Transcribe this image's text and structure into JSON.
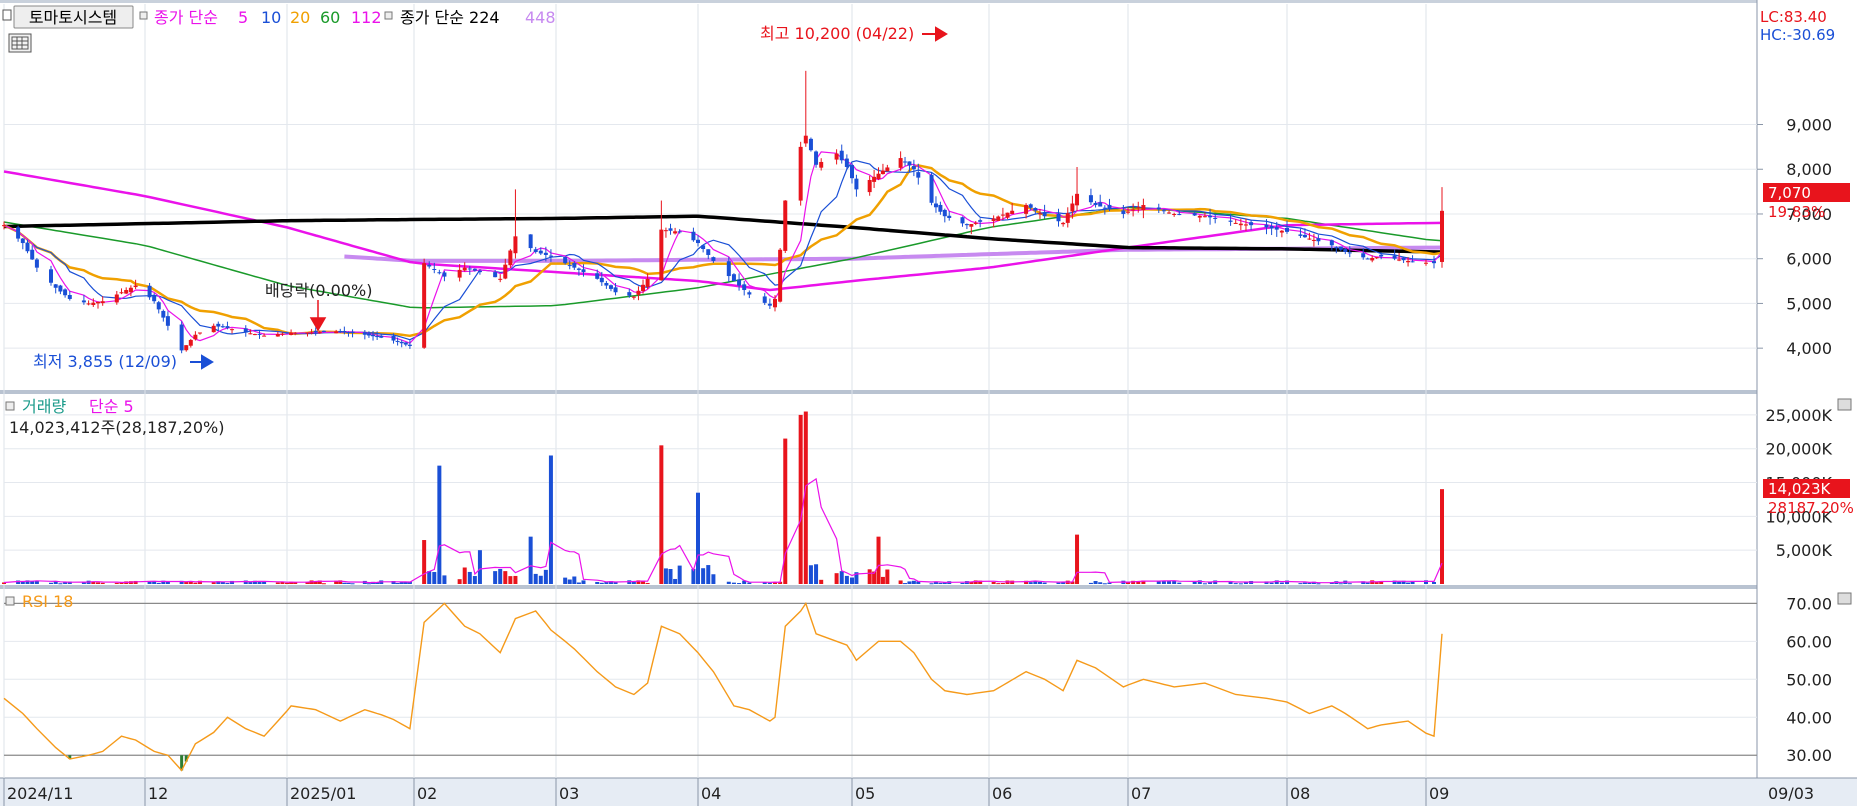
{
  "header": {
    "stock_button": "토마토시스템",
    "ma_label": "종가 단순",
    "ma_periods": [
      "5",
      "10",
      "20",
      "60",
      "112"
    ],
    "ma_long_label": "종가 단순 224",
    "ma_longest": "448",
    "lc": "LC:83.40",
    "hc": "HC:-30.69"
  },
  "colors": {
    "up": "#e8141c",
    "down": "#1a4fd6",
    "ma5": "#ea12ea",
    "ma10": "#1a4fd6",
    "ma20": "#f0a000",
    "ma60": "#1a9a2a",
    "ma112": "#ea12ea",
    "ma224": "#000000",
    "ma448": "#c78af0",
    "rsi": "#f59a1a"
  },
  "annotations": {
    "high": "최고 10,200 (04/22)",
    "low": "최저 3,855 (12/09)",
    "dividend": "배당락(0.00%)"
  },
  "price_panel": {
    "ticks": [
      "9,000",
      "8,000",
      "7,000",
      "6,000",
      "5,000",
      "4,000"
    ],
    "last_price": "7,070",
    "change_pct": "19.83%"
  },
  "volume_panel": {
    "title": "거래량",
    "ma_label": "단순 5",
    "summary": "14,023,412주(28,187,20%)",
    "ticks": [
      "25,000K",
      "20,000K",
      "15,000K",
      "10,000K",
      "5,000K"
    ],
    "last_volume": "14,023K",
    "last_ma": "28187.20%"
  },
  "rsi_panel": {
    "title": "RSI 18",
    "ticks": [
      "70.00",
      "60.00",
      "50.00",
      "40.00",
      "30.00"
    ]
  },
  "x_axis": {
    "labels": [
      "2024/11",
      "12",
      "2025/01",
      "02",
      "03",
      "04",
      "05",
      "06",
      "07",
      "08",
      "09"
    ],
    "cursor_date": "09/03"
  },
  "chart_data": [
    {
      "type": "candlestick",
      "title": "토마토시스템",
      "y_axis_ticks": [
        4000,
        5000,
        6000,
        7000,
        8000,
        9000
      ],
      "ylim": [
        3400,
        10800
      ],
      "x_range": [
        "2024-11-01",
        "2025-09-03"
      ],
      "annotations": [
        {
          "label": "최고 10,200 (04/22)",
          "date": "2025-04-22",
          "value": 10200
        },
        {
          "label": "최저 3,855 (12/09)",
          "date": "2024-12-09",
          "value": 3855
        },
        {
          "label": "배당락(0.00%)",
          "date": "2024-12-27",
          "value": 4700
        }
      ],
      "last_close": 7070,
      "change_percent": 19.83,
      "price_series": [
        [
          "2024-11-01",
          6750
        ],
        [
          "2024-11-05",
          6350
        ],
        [
          "2024-11-08",
          5800
        ],
        [
          "2024-11-12",
          5350
        ],
        [
          "2024-11-15",
          5100
        ],
        [
          "2024-11-19",
          5000
        ],
        [
          "2024-11-22",
          5050
        ],
        [
          "2024-11-26",
          5250
        ],
        [
          "2024-11-29",
          5400
        ],
        [
          "2024-12-03",
          5050
        ],
        [
          "2024-12-06",
          4500
        ],
        [
          "2024-12-09",
          3950
        ],
        [
          "2024-12-12",
          4300
        ],
        [
          "2024-12-16",
          4500
        ],
        [
          "2024-12-19",
          4450
        ],
        [
          "2024-12-23",
          4350
        ],
        [
          "2024-12-27",
          4280
        ],
        [
          "2025-01-02",
          4350
        ],
        [
          "2025-01-08",
          4350
        ],
        [
          "2025-01-14",
          4380
        ],
        [
          "2025-01-20",
          4300
        ],
        [
          "2025-01-26",
          4200
        ],
        [
          "2025-01-31",
          4050
        ],
        [
          "2025-02-03",
          5900
        ],
        [
          "2025-02-07",
          5600
        ],
        [
          "2025-02-11",
          5800
        ],
        [
          "2025-02-14",
          5700
        ],
        [
          "2025-02-18",
          5550
        ],
        [
          "2025-02-21",
          6500
        ],
        [
          "2025-02-25",
          6150
        ],
        [
          "2025-02-28",
          6050
        ],
        [
          "2025-03-05",
          5800
        ],
        [
          "2025-03-10",
          5550
        ],
        [
          "2025-03-14",
          5250
        ],
        [
          "2025-03-18",
          5150
        ],
        [
          "2025-03-21",
          5550
        ],
        [
          "2025-03-24",
          6650
        ],
        [
          "2025-03-28",
          6600
        ],
        [
          "2025-04-01",
          6350
        ],
        [
          "2025-04-04",
          5950
        ],
        [
          "2025-04-08",
          5500
        ],
        [
          "2025-04-11",
          5200
        ],
        [
          "2025-04-15",
          4950
        ],
        [
          "2025-04-16",
          5100
        ],
        [
          "2025-04-18",
          7300
        ],
        [
          "2025-04-21",
          8500
        ],
        [
          "2025-04-22",
          8750
        ],
        [
          "2025-04-24",
          8100
        ],
        [
          "2025-04-28",
          8350
        ],
        [
          "2025-04-30",
          8050
        ],
        [
          "2025-05-02",
          7550
        ],
        [
          "2025-05-07",
          7900
        ],
        [
          "2025-05-12",
          8250
        ],
        [
          "2025-05-15",
          8000
        ],
        [
          "2025-05-19",
          7250
        ],
        [
          "2025-05-22",
          6950
        ],
        [
          "2025-05-27",
          6750
        ],
        [
          "2025-06-02",
          6900
        ],
        [
          "2025-06-09",
          7200
        ],
        [
          "2025-06-13",
          6950
        ],
        [
          "2025-06-17",
          6800
        ],
        [
          "2025-06-20",
          7450
        ],
        [
          "2025-06-24",
          7200
        ],
        [
          "2025-06-30",
          7000
        ],
        [
          "2025-07-04",
          7200
        ],
        [
          "2025-07-10",
          7000
        ],
        [
          "2025-07-16",
          6950
        ],
        [
          "2025-07-22",
          6800
        ],
        [
          "2025-07-28",
          6700
        ],
        [
          "2025-08-01",
          6600
        ],
        [
          "2025-08-06",
          6450
        ],
        [
          "2025-08-11",
          6300
        ],
        [
          "2025-08-14",
          6150
        ],
        [
          "2025-08-19",
          6000
        ],
        [
          "2025-08-22",
          6050
        ],
        [
          "2025-08-28",
          5950
        ],
        [
          "2025-09-02",
          5900
        ],
        [
          "2025-09-03",
          7070
        ]
      ],
      "moving_average_series": [
        {
          "name": "5",
          "key": "ma5"
        },
        {
          "name": "10",
          "key": "ma10"
        },
        {
          "name": "20",
          "key": "ma20"
        },
        {
          "name": "60",
          "key": "ma60"
        },
        {
          "name": "112",
          "key": "ma112"
        },
        {
          "name": "224",
          "key": "ma224"
        },
        {
          "name": "448",
          "key": "ma448"
        }
      ]
    },
    {
      "type": "bar",
      "title": "거래량",
      "y_axis_ticks_k": [
        5000,
        10000,
        15000,
        20000,
        25000
      ],
      "ylim_k": [
        0,
        27500
      ],
      "last_volume_shares": 14023412,
      "spikes_k": [
        [
          "2025-02-03",
          6500
        ],
        [
          "2025-02-06",
          17500
        ],
        [
          "2025-02-14",
          5000
        ],
        [
          "2025-02-24",
          7000
        ],
        [
          "2025-02-28",
          19000
        ],
        [
          "2025-03-24",
          20500
        ],
        [
          "2025-04-01",
          13500
        ],
        [
          "2025-04-18",
          21500
        ],
        [
          "2025-04-21",
          25000
        ],
        [
          "2025-04-22",
          25500
        ],
        [
          "2025-05-07",
          7000
        ],
        [
          "2025-06-20",
          7300
        ],
        [
          "2025-09-03",
          14023
        ]
      ]
    },
    {
      "type": "line",
      "title": "RSI 18",
      "y_axis_ticks": [
        30,
        40,
        50,
        60,
        70
      ],
      "ylim": [
        24,
        73
      ],
      "series": [
        [
          "2024-11-01",
          45
        ],
        [
          "2024-11-05",
          41
        ],
        [
          "2024-11-08",
          37
        ],
        [
          "2024-11-12",
          32
        ],
        [
          "2024-11-15",
          29
        ],
        [
          "2024-11-19",
          30
        ],
        [
          "2024-11-22",
          31
        ],
        [
          "2024-11-26",
          35
        ],
        [
          "2024-11-29",
          34
        ],
        [
          "2024-12-03",
          31
        ],
        [
          "2024-12-06",
          30
        ],
        [
          "2024-12-09",
          26
        ],
        [
          "2024-12-12",
          33
        ],
        [
          "2024-12-16",
          36
        ],
        [
          "2024-12-19",
          40
        ],
        [
          "2024-12-23",
          37
        ],
        [
          "2024-12-27",
          35
        ],
        [
          "2025-01-02",
          43
        ],
        [
          "2025-01-08",
          42
        ],
        [
          "2025-01-14",
          39
        ],
        [
          "2025-01-20",
          42
        ],
        [
          "2025-01-26",
          40
        ],
        [
          "2025-01-31",
          37
        ],
        [
          "2025-02-03",
          65
        ],
        [
          "2025-02-07",
          70
        ],
        [
          "2025-02-11",
          64
        ],
        [
          "2025-02-14",
          62
        ],
        [
          "2025-02-18",
          57
        ],
        [
          "2025-02-21",
          66
        ],
        [
          "2025-02-25",
          68
        ],
        [
          "2025-02-28",
          63
        ],
        [
          "2025-03-05",
          58
        ],
        [
          "2025-03-10",
          52
        ],
        [
          "2025-03-14",
          48
        ],
        [
          "2025-03-18",
          46
        ],
        [
          "2025-03-21",
          49
        ],
        [
          "2025-03-24",
          64
        ],
        [
          "2025-03-28",
          62
        ],
        [
          "2025-04-01",
          57
        ],
        [
          "2025-04-04",
          52
        ],
        [
          "2025-04-08",
          43
        ],
        [
          "2025-04-11",
          42
        ],
        [
          "2025-04-15",
          39
        ],
        [
          "2025-04-16",
          40
        ],
        [
          "2025-04-18",
          64
        ],
        [
          "2025-04-21",
          68
        ],
        [
          "2025-04-22",
          70
        ],
        [
          "2025-04-24",
          62
        ],
        [
          "2025-04-28",
          60
        ],
        [
          "2025-04-30",
          59
        ],
        [
          "2025-05-02",
          55
        ],
        [
          "2025-05-07",
          60
        ],
        [
          "2025-05-12",
          60
        ],
        [
          "2025-05-15",
          57
        ],
        [
          "2025-05-19",
          50
        ],
        [
          "2025-05-22",
          47
        ],
        [
          "2025-05-27",
          46
        ],
        [
          "2025-06-02",
          47
        ],
        [
          "2025-06-09",
          52
        ],
        [
          "2025-06-13",
          50
        ],
        [
          "2025-06-17",
          47
        ],
        [
          "2025-06-20",
          55
        ],
        [
          "2025-06-24",
          53
        ],
        [
          "2025-06-30",
          48
        ],
        [
          "2025-07-04",
          50
        ],
        [
          "2025-07-10",
          48
        ],
        [
          "2025-07-16",
          49
        ],
        [
          "2025-07-22",
          46
        ],
        [
          "2025-07-28",
          45
        ],
        [
          "2025-08-01",
          44
        ],
        [
          "2025-08-06",
          41
        ],
        [
          "2025-08-11",
          43
        ],
        [
          "2025-08-14",
          41
        ],
        [
          "2025-08-19",
          37
        ],
        [
          "2025-08-22",
          38
        ],
        [
          "2025-08-28",
          39
        ],
        [
          "2025-09-02",
          35
        ],
        [
          "2025-09-03",
          62
        ]
      ]
    }
  ]
}
